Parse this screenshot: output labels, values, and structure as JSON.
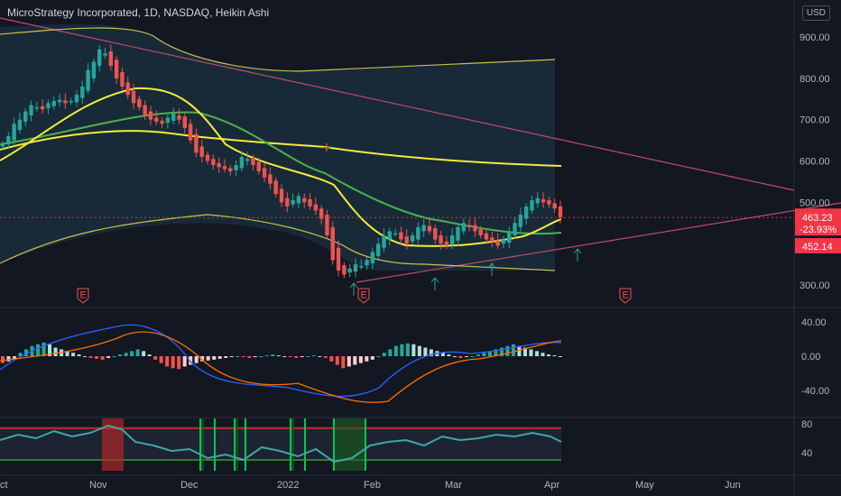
{
  "header": {
    "title": "MicroStrategy Incorporated, 1D, NASDAQ, Heikin Ashi",
    "currency": "USD"
  },
  "price_axis": {
    "labels": [
      "900.00",
      "800.00",
      "700.00",
      "600.00",
      "500.00",
      "300.00"
    ],
    "values": [
      900,
      800,
      700,
      600,
      500,
      300
    ]
  },
  "price_badges": {
    "last": "463.23",
    "change": "-23.93%",
    "ma": "452.14",
    "colors": {
      "last": "#f23645",
      "ma": "#f23645"
    }
  },
  "macd_axis": {
    "labels": [
      "40.00",
      "0.00",
      "-40.00"
    ]
  },
  "rsi_axis": {
    "labels": [
      "80",
      "40"
    ]
  },
  "time_axis": {
    "labels": [
      "ct",
      "Nov",
      "Dec",
      "2022",
      "Feb",
      "Mar",
      "Apr",
      "May",
      "Jun"
    ]
  },
  "earnings": {
    "marker": "E",
    "count": 3
  },
  "colors": {
    "background": "#131722",
    "up": "#26a69a",
    "down": "#ef5350",
    "ma_yellow": "#f5eb3b",
    "ma_green": "#4caf50",
    "band": "#c9c04a",
    "trendline": "#c2496a",
    "macd": "#2962ff",
    "signal": "#ff6d00"
  },
  "chart_data": {
    "type": "candlestick",
    "title": "MicroStrategy Incorporated, 1D, NASDAQ, Heikin Ashi",
    "ylim": [
      270,
      935
    ],
    "x_ticks": [
      "Nov",
      "Dec",
      "2022",
      "Feb",
      "Mar",
      "Apr",
      "May",
      "Jun"
    ],
    "closes_approx": [
      640,
      660,
      690,
      700,
      720,
      735,
      730,
      725,
      740,
      745,
      748,
      740,
      745,
      760,
      780,
      820,
      840,
      870,
      860,
      830,
      800,
      780,
      760,
      740,
      730,
      710,
      700,
      695,
      690,
      705,
      715,
      700,
      680,
      650,
      620,
      610,
      600,
      590,
      585,
      580,
      575,
      590,
      610,
      605,
      590,
      575,
      560,
      545,
      520,
      500,
      490,
      505,
      515,
      500,
      490,
      480,
      460,
      420,
      360,
      335,
      325,
      340,
      350,
      345,
      360,
      380,
      400,
      420,
      430,
      425,
      410,
      400,
      420,
      440,
      445,
      430,
      410,
      400,
      395,
      420,
      440,
      450,
      440,
      430,
      420,
      410,
      405,
      395,
      410,
      430,
      450,
      470,
      490,
      505,
      510,
      500,
      495,
      485,
      463.23
    ],
    "last_price": 463.23,
    "change_pct": -23.93,
    "ma_value": 452.14
  }
}
